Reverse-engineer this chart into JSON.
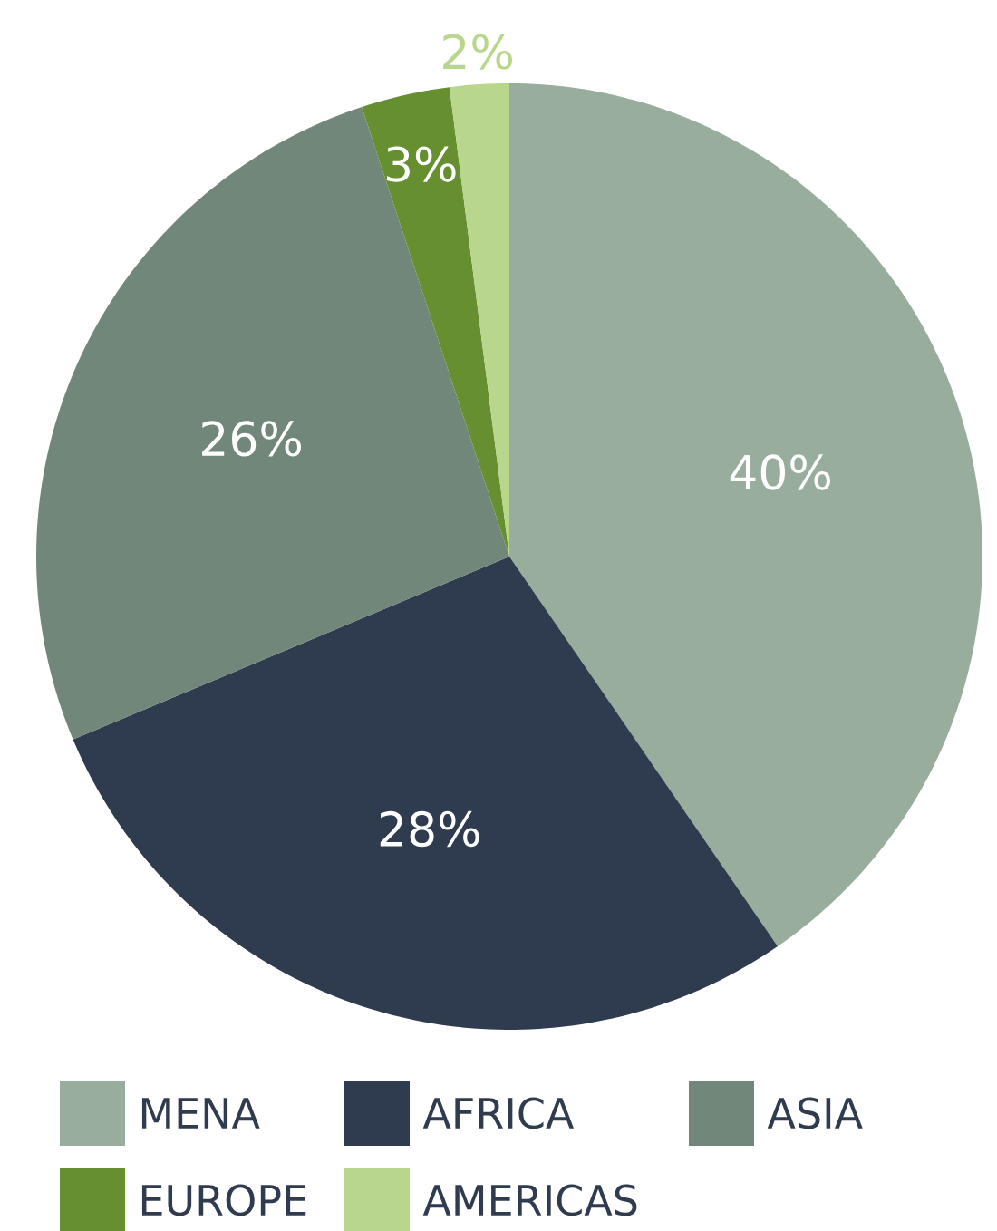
{
  "chart_data": {
    "type": "pie",
    "categories": [
      "MENA",
      "AFRICA",
      "ASIA",
      "EUROPE",
      "AMERICAS"
    ],
    "values": [
      40,
      28,
      26,
      3,
      2
    ],
    "colors": [
      "#98ad9c",
      "#2f3b4f",
      "#718779",
      "#668f30",
      "#b8d68c"
    ],
    "value_labels": [
      "40%",
      "28%",
      "26%",
      "3%",
      "2%"
    ],
    "legend": "bottom"
  }
}
